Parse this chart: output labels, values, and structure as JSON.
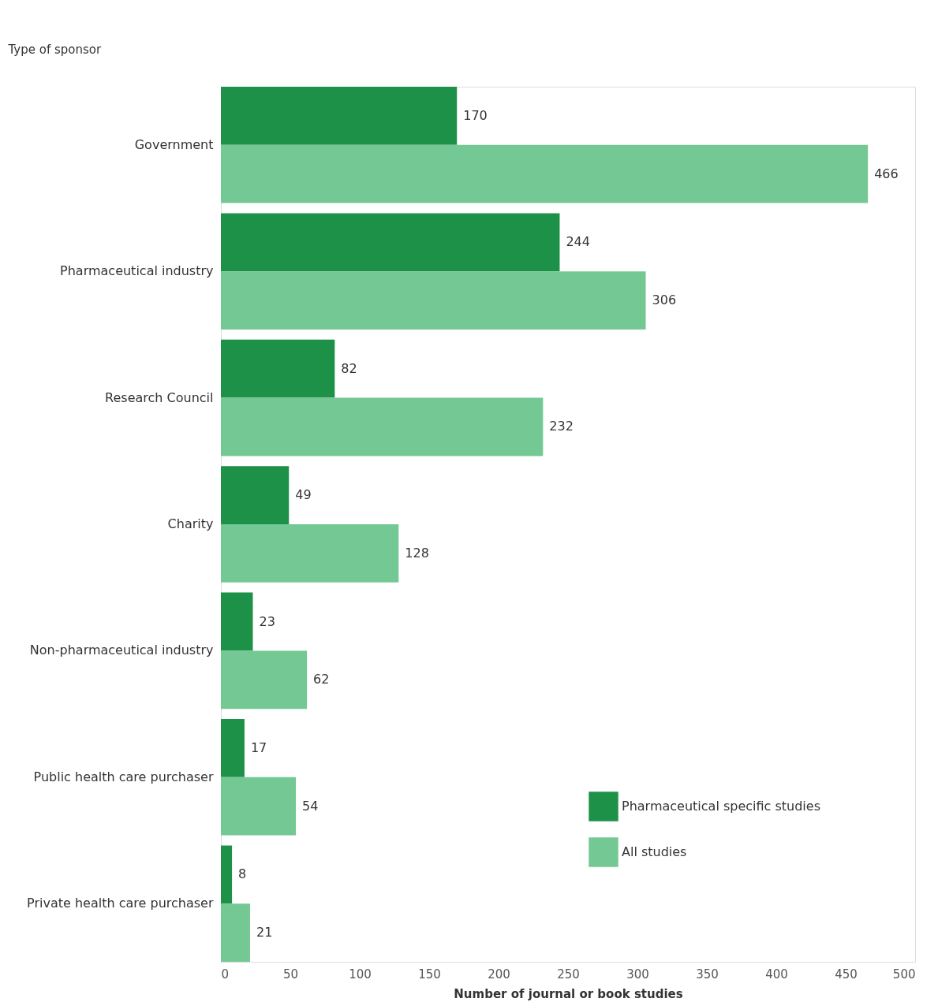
{
  "chart_data": {
    "type": "bar",
    "orientation": "horizontal",
    "ylabel": "Type of sponsor",
    "xlabel": "Number of journal or book studies",
    "categories": [
      "Government",
      "Pharmaceutical industry",
      "Research Council",
      "Charity",
      "Non-pharmaceutical industry",
      "Public health care purchaser",
      "Private health care purchaser"
    ],
    "series": [
      {
        "name": "Pharmaceutical specific studies",
        "color": "#1e9148",
        "values": [
          170,
          244,
          82,
          49,
          23,
          17,
          8
        ]
      },
      {
        "name": "All studies",
        "color": "#74c893",
        "values": [
          466,
          306,
          232,
          128,
          62,
          54,
          21
        ]
      }
    ],
    "xlim": [
      0,
      500
    ],
    "xticks": [
      0,
      50,
      100,
      150,
      200,
      250,
      300,
      350,
      400,
      450,
      500
    ],
    "data_labels": true,
    "grid": false,
    "legend": "bottom right"
  }
}
